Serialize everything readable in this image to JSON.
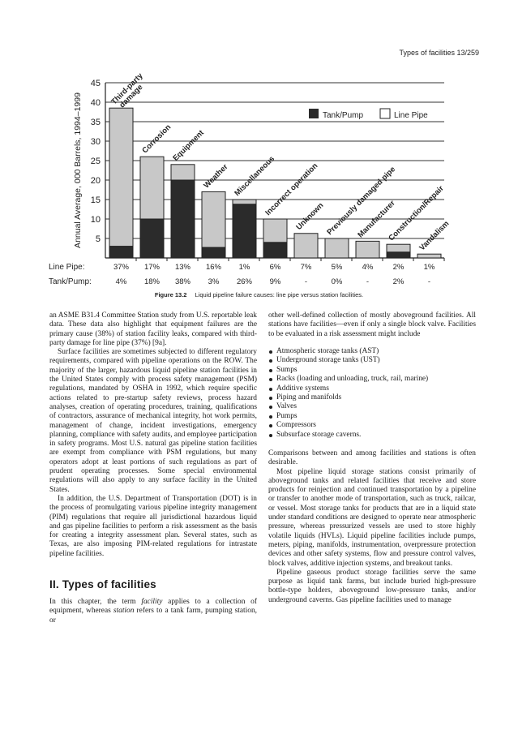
{
  "running_head": "Types of facilities 13/259",
  "chart_data": {
    "type": "bar",
    "stacked": true,
    "ylabel": "Annual Average, 000 Barrels, 1994–1999",
    "ylim": [
      0,
      45
    ],
    "yticks": [
      5,
      10,
      15,
      20,
      25,
      30,
      35,
      40,
      45
    ],
    "grid": true,
    "legend_position": "top-right",
    "categories": [
      [
        "Third-party",
        "damage"
      ],
      [
        "Corrosion"
      ],
      [
        "Equipment"
      ],
      [
        "Weather"
      ],
      [
        "Miscellaneous"
      ],
      [
        "Incorrect operation"
      ],
      [
        "Unknown"
      ],
      [
        "Previously damaged pipe"
      ],
      [
        "Manufacturer"
      ],
      [
        "Construction/Repair"
      ],
      [
        "Vandalism"
      ]
    ],
    "series": [
      {
        "name": "Tank/Pump",
        "color": "#2b2b2b",
        "values": [
          3,
          10,
          20,
          2.7,
          13.8,
          4,
          0,
          0,
          0,
          1.5,
          0
        ]
      },
      {
        "name": "Line Pipe",
        "color": "#c8c8c8",
        "values": [
          35.5,
          16,
          4,
          14.3,
          1.2,
          6,
          6.3,
          5,
          4.3,
          2,
          1
        ]
      }
    ],
    "rows": [
      {
        "label": "Line Pipe:",
        "values": [
          "37%",
          "17%",
          "13%",
          "16%",
          "1%",
          "6%",
          "7%",
          "5%",
          "4%",
          "2%",
          "1%"
        ]
      },
      {
        "label": "Tank/Pump:",
        "values": [
          "4%",
          "18%",
          "38%",
          "3%",
          "26%",
          "9%",
          "-",
          "0%",
          "-",
          "2%",
          "-"
        ]
      }
    ]
  },
  "caption": {
    "label": "Figure 13.2",
    "text": "Liquid pipeline failure causes: line pipe versus station facilities."
  },
  "left_column": {
    "paragraphs": [
      "an ASME B31.4 Committee Station study from U.S. reportable leak data. These data also highlight that equipment failures are the primary cause (38%) of station facility leaks, compared with third-party damage for line pipe (37%) [9a].",
      "Surface facilities are sometimes subjected to different regulatory requirements, compared with pipeline operations on the ROW. The majority of the larger, hazardous liquid pipeline station facilities in the United States comply with process safety management (PSM) regulations, mandated by OSHA in 1992, which require specific actions related to pre-startup safety reviews, process hazard analyses, creation of operating procedures, training, qualifications of contractors, assurance of mechanical integrity, hot work permits, management of change, incident investigations, emergency planning, compliance with safety audits, and employee participation in safety programs. Most U.S. natural gas pipeline station facilities are exempt from compliance with PSM regulations, but many operators adopt at least portions of such regulations as part of prudent operating processes. Some special environmental regulations will also apply to any surface facility in the United States.",
      "In addition, the U.S. Department of Transportation (DOT) is in the process of promulgating various pipeline integrity management (PIM) regulations that require all jurisdictional hazardous liquid and gas pipeline facilities to perform a risk assessment as the basis for creating a integrity assessment plan. Several states, such as Texas, are also imposing PIM-related regulations for intrastate pipeline facilities."
    ],
    "heading": "II. Types of facilities",
    "last_para": {
      "a": "In this chapter, the term ",
      "b": "facility",
      "c": " applies to a collection of equipment, whereas ",
      "d": "station",
      "e": " refers to a tank farm, pumping station, or"
    }
  },
  "right_column": {
    "intro": "other well-defined collection of mostly aboveground facilities. All stations have facilities—even if only a single block valve. Facilities to be evaluated in a risk assessment might include",
    "bullets": [
      "Atmospheric storage tanks (AST)",
      "Underground storage tanks (UST)",
      "Sumps",
      "Racks (loading and unloading, truck, rail, marine)",
      "Additive systems",
      "Piping and manifolds",
      "Valves",
      "Pumps",
      "Compressors",
      "Subsurface storage caverns."
    ],
    "paragraphs": [
      "Comparisons between and among facilities and stations is often desirable.",
      "Most pipeline liquid storage stations consist primarily of aboveground tanks and related facilities that receive and store products for reinjection and continued transportation by a pipeline or transfer to another mode of transportation, such as truck, railcar, or vessel. Most storage tanks for products that are in a liquid state under standard conditions are designed to operate near atmospheric pressure, whereas pressurized vessels are used to store highly volatile liquids (HVLs). Liquid pipeline facilities include pumps, meters, piping, manifolds, instrumentation, overpressure protection devices and other safety systems, flow and pressure control valves, block valves, additive injection systems, and breakout tanks.",
      "Pipeline gaseous product storage facilities serve the same purpose as liquid tank farms, but include buried high-pressure bottle-type holders, aboveground low-pressure tanks, and/or underground caverns. Gas pipeline facilities used to manage"
    ]
  }
}
